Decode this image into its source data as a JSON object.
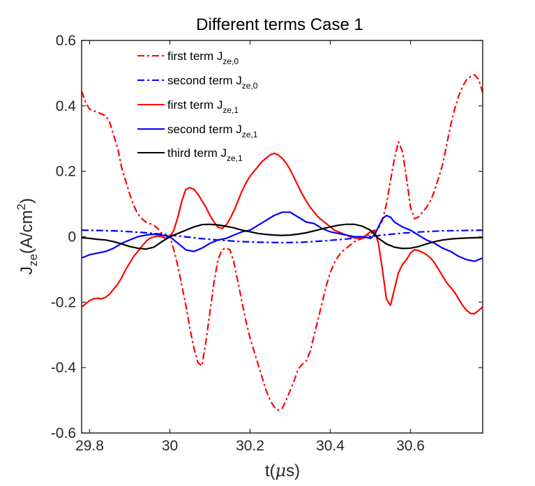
{
  "chart_data": {
    "type": "line",
    "title": "Different terms Case 1",
    "xlabel": {
      "main": "t(",
      "greek": "μ",
      "tail": "s)"
    },
    "ylabel": {
      "base": "J",
      "sub": "ze",
      "mid": "(A/cm",
      "sup": "2",
      "end": ")"
    },
    "xlim": [
      29.78,
      30.78
    ],
    "ylim": [
      -0.6,
      0.6
    ],
    "xticks": [
      29.8,
      30,
      30.2,
      30.4,
      30.6
    ],
    "xticklabels": [
      "29.8",
      "30",
      "30.2",
      "30.4",
      "30.6"
    ],
    "yticks": [
      -0.6,
      -0.4,
      -0.2,
      0,
      0.2,
      0.4,
      0.6
    ],
    "yticklabels": [
      "-0.6",
      "-0.4",
      "-0.2",
      "0",
      "0.2",
      "0.4",
      "0.6"
    ],
    "legend_position": "top-left",
    "series": [
      {
        "name": "first term J_ze,0",
        "label": "first term J",
        "sub": "ze,0",
        "color": "#ff0000",
        "style": "dashdot",
        "x": [
          29.78,
          29.79,
          29.8,
          29.81,
          29.82,
          29.83,
          29.84,
          29.85,
          29.86,
          29.87,
          29.88,
          29.89,
          29.9,
          29.91,
          29.92,
          29.93,
          29.94,
          29.95,
          29.96,
          29.97,
          29.98,
          29.99,
          30.0,
          30.01,
          30.02,
          30.03,
          30.04,
          30.05,
          30.06,
          30.07,
          30.08,
          30.09,
          30.1,
          30.11,
          30.12,
          30.13,
          30.14,
          30.15,
          30.16,
          30.17,
          30.18,
          30.19,
          30.2,
          30.21,
          30.22,
          30.23,
          30.24,
          30.25,
          30.26,
          30.27,
          30.28,
          30.29,
          30.3,
          30.31,
          30.32,
          30.33,
          30.34,
          30.35,
          30.36,
          30.37,
          30.38,
          30.39,
          30.4,
          30.41,
          30.42,
          30.43,
          30.44,
          30.45,
          30.46,
          30.47,
          30.48,
          30.49,
          30.5,
          30.51,
          30.52,
          30.53,
          30.54,
          30.55,
          30.56,
          30.57,
          30.58,
          30.59,
          30.6,
          30.61,
          30.62,
          30.63,
          30.64,
          30.65,
          30.66,
          30.67,
          30.68,
          30.69,
          30.7,
          30.71,
          30.72,
          30.73,
          30.74,
          30.75,
          30.76,
          30.77,
          30.78
        ],
        "y": [
          0.445,
          0.41,
          0.39,
          0.385,
          0.38,
          0.375,
          0.37,
          0.35,
          0.31,
          0.27,
          0.21,
          0.17,
          0.13,
          0.095,
          0.07,
          0.055,
          0.045,
          0.04,
          0.035,
          0.025,
          0.01,
          0.005,
          0.0,
          -0.04,
          -0.09,
          -0.15,
          -0.21,
          -0.28,
          -0.34,
          -0.385,
          -0.395,
          -0.32,
          -0.23,
          -0.14,
          -0.07,
          -0.04,
          -0.035,
          -0.04,
          -0.08,
          -0.14,
          -0.2,
          -0.26,
          -0.31,
          -0.35,
          -0.39,
          -0.43,
          -0.47,
          -0.5,
          -0.52,
          -0.53,
          -0.525,
          -0.5,
          -0.47,
          -0.44,
          -0.405,
          -0.39,
          -0.38,
          -0.35,
          -0.3,
          -0.25,
          -0.2,
          -0.15,
          -0.11,
          -0.08,
          -0.06,
          -0.045,
          -0.035,
          -0.025,
          -0.015,
          -0.01,
          -0.005,
          0.0,
          0.01,
          0.015,
          0.025,
          0.05,
          0.1,
          0.17,
          0.24,
          0.29,
          0.26,
          0.18,
          0.09,
          0.055,
          0.06,
          0.075,
          0.09,
          0.11,
          0.14,
          0.18,
          0.22,
          0.28,
          0.34,
          0.39,
          0.43,
          0.46,
          0.48,
          0.49,
          0.495,
          0.48,
          0.44
        ]
      },
      {
        "name": "second term J_ze,0",
        "label": "second term J",
        "sub": "ze,0",
        "color": "#0000ff",
        "style": "dashdot",
        "x": [
          29.78,
          29.83,
          29.88,
          29.93,
          29.98,
          30.03,
          30.08,
          30.13,
          30.18,
          30.23,
          30.28,
          30.33,
          30.38,
          30.43,
          30.48,
          30.53,
          30.58,
          30.63,
          30.68,
          30.73,
          30.78
        ],
        "y": [
          0.02,
          0.019,
          0.017,
          0.013,
          0.008,
          0.001,
          -0.006,
          -0.011,
          -0.015,
          -0.017,
          -0.018,
          -0.017,
          -0.013,
          -0.008,
          -0.002,
          0.005,
          0.011,
          0.015,
          0.018,
          0.019,
          0.02
        ]
      },
      {
        "name": "first term J_ze,1",
        "label": "first term J",
        "sub": "ze,1",
        "color": "#ff0000",
        "style": "solid",
        "x": [
          29.78,
          29.79,
          29.8,
          29.81,
          29.82,
          29.83,
          29.84,
          29.85,
          29.86,
          29.87,
          29.88,
          29.89,
          29.9,
          29.91,
          29.92,
          29.93,
          29.94,
          29.95,
          29.96,
          29.97,
          29.98,
          29.99,
          30.0,
          30.01,
          30.02,
          30.03,
          30.04,
          30.05,
          30.06,
          30.07,
          30.08,
          30.09,
          30.1,
          30.11,
          30.12,
          30.13,
          30.14,
          30.15,
          30.16,
          30.17,
          30.18,
          30.19,
          30.2,
          30.21,
          30.22,
          30.23,
          30.24,
          30.25,
          30.26,
          30.27,
          30.28,
          30.29,
          30.3,
          30.31,
          30.32,
          30.33,
          30.34,
          30.35,
          30.36,
          30.37,
          30.38,
          30.39,
          30.4,
          30.41,
          30.42,
          30.43,
          30.44,
          30.45,
          30.46,
          30.47,
          30.48,
          30.49,
          30.5,
          30.51,
          30.52,
          30.53,
          30.54,
          30.55,
          30.56,
          30.57,
          30.58,
          30.59,
          30.6,
          30.61,
          30.62,
          30.63,
          30.64,
          30.65,
          30.66,
          30.67,
          30.68,
          30.69,
          30.7,
          30.71,
          30.72,
          30.73,
          30.74,
          30.75,
          30.76,
          30.77,
          30.78
        ],
        "y": [
          -0.215,
          -0.205,
          -0.195,
          -0.19,
          -0.188,
          -0.19,
          -0.185,
          -0.175,
          -0.16,
          -0.145,
          -0.125,
          -0.1,
          -0.08,
          -0.06,
          -0.045,
          -0.03,
          -0.015,
          -0.005,
          0.0,
          0.002,
          0.0,
          -0.005,
          0.0,
          0.02,
          0.06,
          0.11,
          0.145,
          0.15,
          0.145,
          0.13,
          0.11,
          0.09,
          0.065,
          0.045,
          0.03,
          0.025,
          0.035,
          0.055,
          0.08,
          0.11,
          0.14,
          0.165,
          0.185,
          0.2,
          0.215,
          0.23,
          0.24,
          0.25,
          0.255,
          0.25,
          0.24,
          0.225,
          0.205,
          0.18,
          0.155,
          0.13,
          0.11,
          0.09,
          0.075,
          0.06,
          0.05,
          0.04,
          0.03,
          0.02,
          0.015,
          0.01,
          0.005,
          0.0,
          -0.003,
          -0.005,
          -0.002,
          0.005,
          0.015,
          0.02,
          -0.02,
          -0.1,
          -0.19,
          -0.21,
          -0.16,
          -0.11,
          -0.085,
          -0.07,
          -0.05,
          -0.04,
          -0.042,
          -0.048,
          -0.055,
          -0.065,
          -0.08,
          -0.1,
          -0.12,
          -0.14,
          -0.155,
          -0.17,
          -0.19,
          -0.21,
          -0.225,
          -0.235,
          -0.235,
          -0.225,
          -0.215
        ]
      },
      {
        "name": "second term J_ze,1",
        "label": "second term J",
        "sub": "ze,1",
        "color": "#0000ff",
        "style": "solid",
        "x": [
          29.78,
          29.8,
          29.82,
          29.84,
          29.86,
          29.88,
          29.9,
          29.92,
          29.94,
          29.96,
          29.98,
          30.0,
          30.02,
          30.04,
          30.06,
          30.08,
          30.1,
          30.12,
          30.14,
          30.16,
          30.18,
          30.2,
          30.22,
          30.24,
          30.26,
          30.28,
          30.3,
          30.32,
          30.34,
          30.36,
          30.38,
          30.4,
          30.42,
          30.44,
          30.46,
          30.48,
          30.5,
          30.51,
          30.52,
          30.53,
          30.54,
          30.55,
          30.56,
          30.58,
          30.6,
          30.62,
          30.64,
          30.66,
          30.68,
          30.7,
          30.72,
          30.74,
          30.76,
          30.78
        ],
        "y": [
          -0.065,
          -0.055,
          -0.05,
          -0.045,
          -0.035,
          -0.02,
          -0.01,
          0.0,
          0.005,
          0.008,
          0.005,
          0.0,
          -0.02,
          -0.04,
          -0.045,
          -0.035,
          -0.02,
          -0.01,
          -0.005,
          0.005,
          0.015,
          0.02,
          0.035,
          0.05,
          0.065,
          0.075,
          0.075,
          0.06,
          0.045,
          0.04,
          0.025,
          0.015,
          0.01,
          0.005,
          0.0,
          0.0,
          -0.005,
          0.005,
          0.03,
          0.055,
          0.065,
          0.06,
          0.045,
          0.03,
          0.02,
          0.005,
          -0.01,
          -0.02,
          -0.035,
          -0.045,
          -0.06,
          -0.07,
          -0.075,
          -0.065
        ]
      },
      {
        "name": "third term J_ze,1",
        "label": "third term J",
        "sub": "ze,1",
        "color": "#000000",
        "style": "solid",
        "x": [
          29.78,
          29.8,
          29.82,
          29.84,
          29.86,
          29.88,
          29.9,
          29.92,
          29.94,
          29.96,
          29.98,
          30.0,
          30.02,
          30.04,
          30.06,
          30.08,
          30.1,
          30.12,
          30.14,
          30.16,
          30.18,
          30.2,
          30.22,
          30.24,
          30.26,
          30.28,
          30.3,
          30.32,
          30.34,
          30.36,
          30.38,
          30.4,
          30.42,
          30.44,
          30.46,
          30.48,
          30.5,
          30.52,
          30.54,
          30.56,
          30.58,
          30.6,
          30.62,
          30.64,
          30.66,
          30.68,
          30.7,
          30.72,
          30.74,
          30.76,
          30.78
        ],
        "y": [
          -0.003,
          -0.005,
          -0.008,
          -0.01,
          -0.015,
          -0.022,
          -0.03,
          -0.035,
          -0.038,
          -0.032,
          -0.015,
          0.0,
          0.01,
          0.02,
          0.03,
          0.037,
          0.038,
          0.036,
          0.032,
          0.027,
          0.02,
          0.015,
          0.01,
          0.007,
          0.005,
          0.004,
          0.005,
          0.008,
          0.012,
          0.018,
          0.024,
          0.03,
          0.035,
          0.038,
          0.038,
          0.032,
          0.02,
          -0.005,
          -0.022,
          -0.032,
          -0.036,
          -0.035,
          -0.03,
          -0.022,
          -0.015,
          -0.01,
          -0.007,
          -0.005,
          -0.004,
          -0.003,
          -0.003
        ]
      }
    ]
  }
}
